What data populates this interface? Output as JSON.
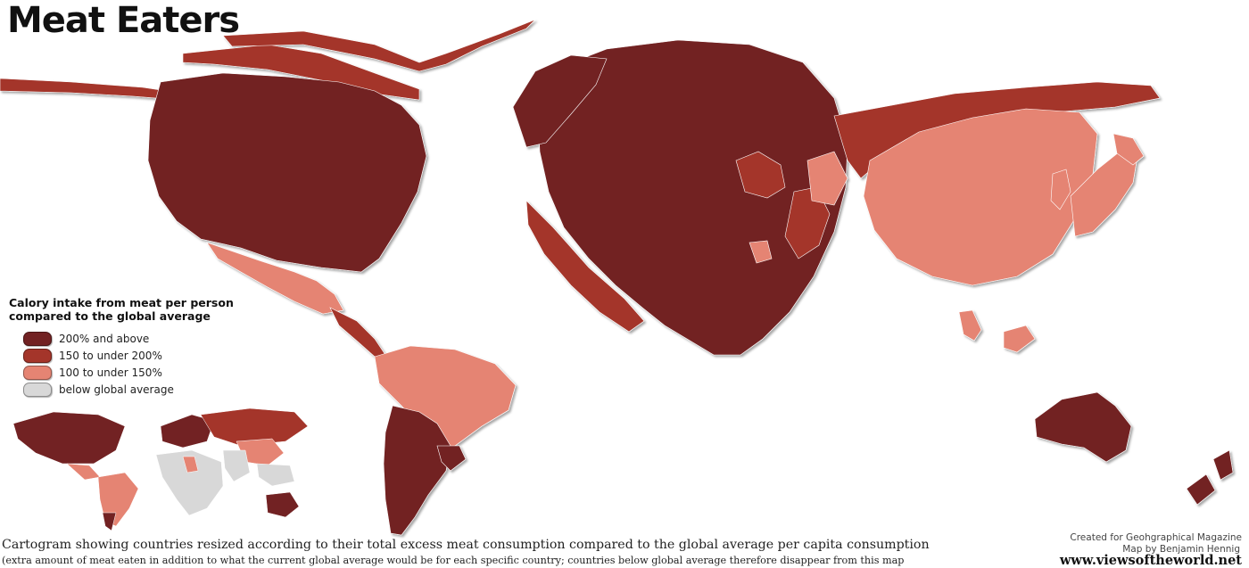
{
  "title": "Meat Eaters",
  "legend": {
    "title_line1": "Calory intake from meat per person",
    "title_line2": "compared to the global average",
    "items": [
      {
        "label": "200% and above",
        "color": "#722223"
      },
      {
        "label": "150 to under 200%",
        "color": "#a4352a"
      },
      {
        "label": "100 to under 150%",
        "color": "#e58473"
      },
      {
        "label": "below global average",
        "color": "#d8d8d8"
      }
    ]
  },
  "caption": {
    "line1": "Cartogram showing countries resized according to their total excess meat consumption compared to the global average per capita consumption",
    "line2": "(extra amount of meat eaten in addition to what the current global average would be for each specific country; countries below global average therefore disappear from this map"
  },
  "credits": {
    "line1": "Created for Geohgraphical Magazine",
    "line2": "Map by Benjamin Hennig",
    "url": "www.viewsoftheworld.net"
  },
  "colors": {
    "dark": "#722223",
    "medium": "#a4352a",
    "light": "#e58473",
    "below": "#d8d8d8"
  }
}
